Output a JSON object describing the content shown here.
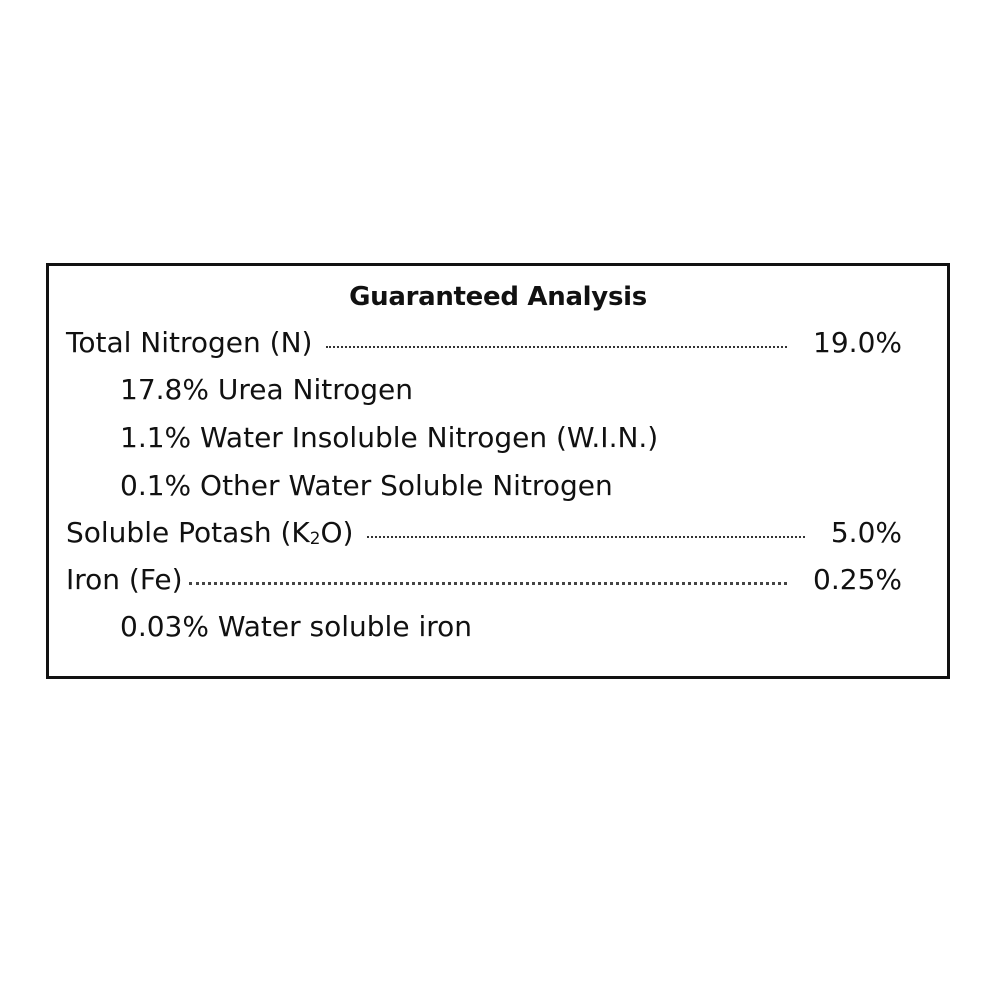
{
  "title": "Guaranteed Analysis",
  "rows": [
    {
      "name": "Total Nitrogen (N)",
      "value": "19.0%"
    },
    {
      "name": "17.8% Urea Nitrogen"
    },
    {
      "name": "1.1% Water Insoluble Nitrogen (W.I.N.)"
    },
    {
      "name": "0.1% Other Water Soluble Nitrogen"
    },
    {
      "name_prefix": "Soluble Potash (K",
      "name_sub": "2",
      "name_suffix": "O)",
      "value": "5.0%"
    },
    {
      "name": "Iron (Fe)",
      "value": "0.25%"
    },
    {
      "name": "0.03% Water soluble iron"
    }
  ]
}
